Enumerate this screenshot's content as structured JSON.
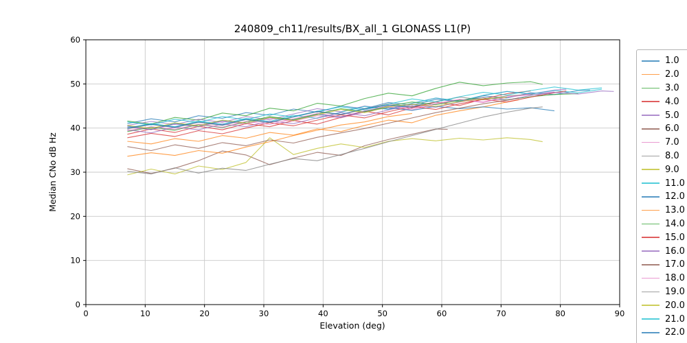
{
  "chart_data": {
    "type": "line",
    "title": "240809_ch11/results/BX_all_1 GLONASS L1(P)",
    "xlabel": "Elevation (deg)",
    "ylabel": "Median CNo dB Hz",
    "xlim": [
      0,
      90
    ],
    "ylim": [
      0,
      60
    ],
    "xticks": [
      0,
      10,
      20,
      30,
      40,
      50,
      60,
      70,
      80,
      90
    ],
    "yticks": [
      0,
      10,
      20,
      30,
      40,
      50,
      60
    ],
    "grid": true,
    "grid_color": "#c9c9c9",
    "line_opacity": 0.75,
    "legend_position": "right-outside",
    "legend_note": "last entry (22.0) clipped by bottom edge of image",
    "series": [
      {
        "name": "1.0",
        "color": "#1f77b4",
        "x": [
          7,
          11,
          15,
          19,
          23,
          27,
          31,
          35,
          39,
          43,
          47,
          51,
          55,
          59,
          63,
          67,
          71,
          75,
          79,
          83,
          85
        ],
        "y": [
          41.0,
          42.1,
          41.4,
          42.8,
          42.2,
          43.5,
          42.9,
          44.3,
          43.6,
          45.0,
          44.4,
          45.8,
          45.2,
          46.5,
          46.0,
          47.3,
          46.8,
          48.0,
          47.6,
          48.5,
          48.6
        ]
      },
      {
        "name": "2.0",
        "color": "#ff7f0e",
        "x": [
          7,
          11,
          15,
          19,
          23,
          27,
          31,
          35,
          39,
          43,
          47,
          51,
          55,
          59,
          63,
          67,
          71,
          73
        ],
        "y": [
          37.0,
          36.4,
          37.6,
          37.0,
          38.3,
          37.7,
          39.0,
          38.4,
          39.8,
          39.2,
          40.6,
          41.8,
          41.2,
          42.9,
          43.9,
          44.8,
          45.9,
          46.4
        ]
      },
      {
        "name": "3.0",
        "color": "#2ca02c",
        "x": [
          7,
          11,
          15,
          19,
          23,
          27,
          31,
          35,
          39,
          43,
          47,
          51,
          55,
          59,
          63,
          67,
          71,
          75,
          77
        ],
        "y": [
          41.6,
          40.9,
          42.4,
          41.8,
          43.4,
          42.8,
          44.5,
          43.9,
          45.6,
          45.0,
          46.7,
          47.9,
          47.3,
          49.0,
          50.4,
          49.6,
          50.2,
          50.5,
          49.9
        ]
      },
      {
        "name": "4.0",
        "color": "#d62728",
        "x": [
          7,
          11,
          15,
          19,
          23,
          27,
          31,
          35,
          39,
          43,
          47,
          51,
          55,
          59,
          63,
          67,
          71,
          75
        ],
        "y": [
          38.6,
          39.8,
          39.0,
          40.4,
          39.6,
          41.0,
          40.3,
          41.7,
          40.9,
          42.4,
          43.8,
          43.0,
          44.6,
          45.9,
          45.1,
          46.6,
          47.8,
          48.4
        ]
      },
      {
        "name": "5.0",
        "color": "#9467bd",
        "x": [
          7,
          11,
          15,
          19,
          23,
          27,
          31,
          35,
          39,
          43,
          47,
          51,
          55,
          59,
          63,
          67,
          71,
          75,
          79,
          81
        ],
        "y": [
          40.6,
          41.5,
          40.8,
          42.0,
          41.3,
          42.6,
          41.9,
          43.2,
          44.4,
          43.7,
          45.0,
          44.3,
          45.6,
          46.8,
          46.1,
          47.4,
          48.3,
          47.7,
          48.6,
          48.8
        ]
      },
      {
        "name": "6.0",
        "color": "#8c564b",
        "x": [
          7,
          11,
          15,
          19,
          23,
          27,
          31,
          35,
          39,
          43,
          47,
          51,
          55,
          59,
          61
        ],
        "y": [
          30.8,
          29.7,
          30.9,
          32.6,
          34.8,
          33.9,
          31.7,
          33.2,
          34.5,
          33.8,
          36.0,
          37.4,
          38.6,
          39.8,
          39.7
        ]
      },
      {
        "name": "7.0",
        "color": "#e377c2",
        "x": [
          7,
          11,
          15,
          19,
          23,
          27,
          31,
          35,
          39,
          43,
          47,
          51,
          55,
          59,
          63,
          67,
          71,
          75,
          79
        ],
        "y": [
          40.2,
          39.6,
          40.9,
          40.3,
          41.5,
          40.9,
          42.2,
          41.6,
          42.8,
          42.3,
          43.6,
          44.8,
          44.1,
          45.4,
          46.4,
          45.8,
          47.0,
          47.8,
          48.2
        ]
      },
      {
        "name": "8.0",
        "color": "#7f7f7f",
        "x": [
          7,
          11,
          15,
          19,
          23,
          27,
          31,
          35,
          39,
          43,
          47,
          51,
          55,
          59,
          63,
          67,
          71,
          75,
          77
        ],
        "y": [
          39.8,
          40.8,
          40.1,
          41.3,
          40.6,
          41.9,
          41.2,
          42.5,
          43.7,
          43.0,
          44.3,
          45.5,
          44.8,
          46.0,
          47.0,
          46.4,
          47.3,
          47.6,
          47.4
        ]
      },
      {
        "name": "9.0",
        "color": "#bcbd22",
        "x": [
          7,
          11,
          15,
          19,
          23,
          27,
          31,
          35,
          39,
          43,
          47,
          51,
          55,
          59,
          63,
          67,
          71,
          75,
          77
        ],
        "y": [
          29.4,
          30.7,
          29.6,
          31.4,
          30.6,
          32.2,
          37.8,
          34.0,
          35.4,
          36.4,
          35.6,
          37.0,
          37.6,
          37.1,
          37.7,
          37.3,
          37.8,
          37.4,
          36.9
        ]
      },
      {
        "name": "11.0",
        "color": "#17becf",
        "x": [
          7,
          11,
          15,
          19,
          23,
          27,
          31,
          35,
          39,
          43,
          47,
          51,
          55,
          59,
          63,
          67,
          71,
          75,
          79,
          83,
          87
        ],
        "y": [
          40.0,
          41.0,
          40.3,
          41.6,
          40.9,
          42.2,
          41.5,
          42.9,
          42.2,
          43.6,
          44.9,
          44.2,
          45.6,
          46.8,
          46.1,
          47.4,
          48.3,
          47.7,
          48.5,
          48.0,
          48.8
        ]
      },
      {
        "name": "12.0",
        "color": "#1f77b4",
        "x": [
          7,
          11,
          15,
          19,
          23,
          27,
          31,
          35,
          39,
          43,
          47,
          51,
          55,
          59,
          63,
          67,
          71,
          75,
          79
        ],
        "y": [
          40.4,
          39.7,
          41.0,
          40.4,
          41.7,
          41.1,
          42.4,
          41.8,
          43.1,
          42.5,
          43.8,
          44.6,
          44.0,
          44.9,
          44.4,
          44.8,
          44.3,
          44.6,
          43.9
        ]
      },
      {
        "name": "13.0",
        "color": "#ff7f0e",
        "x": [
          7,
          11,
          15,
          19,
          23,
          27,
          31,
          35,
          39,
          43,
          47,
          51,
          55
        ],
        "y": [
          33.6,
          34.4,
          33.8,
          34.9,
          34.3,
          35.7,
          36.9,
          38.3,
          39.5,
          40.7,
          41.4,
          42.6,
          43.3
        ]
      },
      {
        "name": "14.0",
        "color": "#2ca02c",
        "x": [
          7,
          11,
          15,
          19,
          23,
          27,
          31,
          35,
          39,
          43,
          47,
          51,
          55,
          59,
          63,
          67,
          71,
          75,
          79,
          83
        ],
        "y": [
          39.2,
          40.2,
          39.5,
          40.8,
          40.1,
          41.4,
          42.6,
          41.9,
          43.2,
          44.4,
          43.7,
          45.0,
          45.9,
          45.3,
          46.3,
          46.9,
          46.4,
          47.1,
          47.6,
          47.8
        ]
      },
      {
        "name": "15.0",
        "color": "#d62728",
        "x": [
          7,
          11,
          15,
          19,
          23,
          27,
          31,
          35,
          39,
          43,
          47,
          51,
          55,
          59,
          63,
          67,
          71,
          75,
          79,
          81
        ],
        "y": [
          37.8,
          38.8,
          38.1,
          39.4,
          38.7,
          40.0,
          41.2,
          40.5,
          41.8,
          43.0,
          42.3,
          43.7,
          44.9,
          44.2,
          45.5,
          46.5,
          45.9,
          47.0,
          48.0,
          48.4
        ]
      },
      {
        "name": "16.0",
        "color": "#9467bd",
        "x": [
          7,
          11,
          15,
          19,
          23,
          27,
          31,
          35,
          39,
          43,
          47,
          51,
          55,
          59,
          63,
          67,
          71,
          75,
          79,
          83,
          87,
          89
        ],
        "y": [
          39.6,
          38.9,
          40.2,
          39.6,
          40.9,
          40.3,
          41.6,
          41.0,
          42.3,
          43.5,
          42.8,
          44.1,
          45.3,
          44.7,
          45.9,
          46.9,
          46.3,
          47.4,
          48.1,
          47.7,
          48.4,
          48.3
        ]
      },
      {
        "name": "17.0",
        "color": "#8c564b",
        "x": [
          7,
          11,
          15,
          19,
          23,
          27,
          31,
          35,
          39,
          43,
          47,
          51,
          55,
          59,
          63,
          67,
          71,
          73
        ],
        "y": [
          35.8,
          34.9,
          36.2,
          35.4,
          36.7,
          36.0,
          37.3,
          36.6,
          37.9,
          38.9,
          39.9,
          41.1,
          42.3,
          43.5,
          44.5,
          45.5,
          46.3,
          46.8
        ]
      },
      {
        "name": "18.0",
        "color": "#e377c2",
        "x": [
          7,
          11,
          15,
          19,
          23,
          27,
          31,
          35,
          39,
          43,
          47,
          51,
          55,
          59,
          63,
          67,
          71,
          75
        ],
        "y": [
          39.4,
          40.3,
          39.7,
          40.9,
          40.2,
          41.5,
          40.8,
          42.1,
          43.3,
          42.6,
          43.9,
          45.1,
          44.4,
          45.6,
          46.5,
          45.9,
          47.0,
          47.6
        ]
      },
      {
        "name": "19.0",
        "color": "#7f7f7f",
        "x": [
          7,
          11,
          15,
          19,
          23,
          27,
          31,
          35,
          39,
          43,
          47,
          51,
          55,
          59,
          63,
          67,
          71,
          75,
          77
        ],
        "y": [
          30.2,
          29.6,
          31.0,
          29.8,
          30.9,
          30.4,
          31.8,
          33.1,
          32.6,
          34.0,
          35.4,
          36.9,
          38.3,
          39.7,
          41.1,
          42.5,
          43.6,
          44.5,
          44.8
        ]
      },
      {
        "name": "20.0",
        "color": "#bcbd22",
        "x": [
          7,
          11,
          15,
          19,
          23,
          27,
          31,
          35,
          39,
          43,
          47,
          51,
          55,
          59,
          63,
          67,
          71
        ],
        "y": [
          40.6,
          39.9,
          41.2,
          40.5,
          41.8,
          41.1,
          42.4,
          41.7,
          43.0,
          44.2,
          43.5,
          44.8,
          45.4,
          44.9,
          46.0,
          46.6,
          47.0
        ]
      },
      {
        "name": "21.0",
        "color": "#17becf",
        "x": [
          7,
          11,
          15,
          19,
          23,
          27,
          31,
          35,
          39,
          43,
          47,
          51,
          55,
          59,
          63,
          67,
          71,
          75,
          79,
          83,
          87
        ],
        "y": [
          41.4,
          40.7,
          42.0,
          41.3,
          42.6,
          41.9,
          43.2,
          42.5,
          43.8,
          44.8,
          44.1,
          45.4,
          46.6,
          45.9,
          47.1,
          48.1,
          47.5,
          48.5,
          49.3,
          48.6,
          49.1
        ]
      },
      {
        "name": "22.0",
        "color": "#1f77b4",
        "x": [
          7,
          11,
          15,
          19,
          23,
          27,
          31,
          35,
          39,
          43,
          47,
          51,
          55,
          57
        ],
        "y": [
          40.0,
          40.9,
          40.2,
          41.4,
          40.7,
          42.0,
          41.3,
          42.6,
          43.8,
          43.1,
          44.4,
          45.2,
          44.7,
          45.6
        ]
      }
    ]
  }
}
